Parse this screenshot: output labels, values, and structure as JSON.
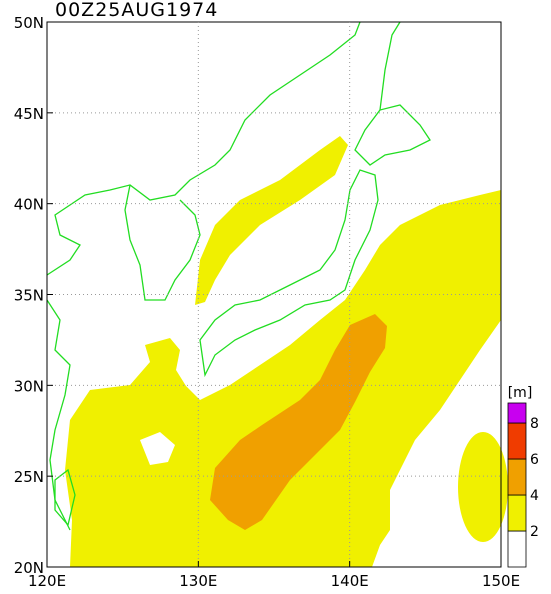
{
  "map": {
    "title": "00Z25AUG1974",
    "lon_ticks": [
      {
        "value": 120,
        "label": "120E"
      },
      {
        "value": 130,
        "label": "130E"
      },
      {
        "value": 140,
        "label": "140E"
      },
      {
        "value": 150,
        "label": "150E"
      }
    ],
    "lat_ticks": [
      {
        "value": 20,
        "label": "20N"
      },
      {
        "value": 25,
        "label": "25N"
      },
      {
        "value": 30,
        "label": "30N"
      },
      {
        "value": 35,
        "label": "35N"
      },
      {
        "value": 40,
        "label": "40N"
      },
      {
        "value": 45,
        "label": "45N"
      },
      {
        "value": 50,
        "label": "50N"
      }
    ],
    "lon_range": [
      120,
      150
    ],
    "lat_range": [
      20,
      50
    ],
    "colorbar": {
      "unit": "[m]",
      "levels": [
        2,
        4,
        6,
        8
      ],
      "colors": [
        "#ffffff",
        "#f0f000",
        "#f0a000",
        "#f03c00",
        "#c800f0"
      ]
    }
  }
}
